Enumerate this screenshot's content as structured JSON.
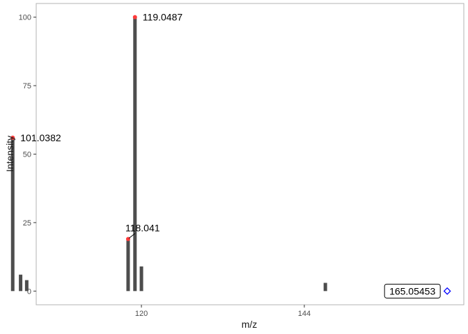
{
  "chart_data": {
    "type": "bar",
    "xlabel": "m/z",
    "ylabel": "Intensity",
    "xlim": [
      104.5,
      167.5
    ],
    "ylim": [
      -5,
      105
    ],
    "xticks": [
      120,
      144
    ],
    "yticks": [
      0,
      25,
      50,
      75,
      100
    ],
    "grid": false,
    "colors": {
      "bar": "#4d4d4d",
      "highlight": "#ff3b3b",
      "precursor": "#0000ff",
      "border": "#b3b3b3"
    },
    "series": [
      {
        "peaks": [
          {
            "mz": 101.0382,
            "intensity": 56
          },
          {
            "mz": 102.2,
            "intensity": 6
          },
          {
            "mz": 103.1,
            "intensity": 4
          },
          {
            "mz": 118.041,
            "intensity": 19
          },
          {
            "mz": 119.0487,
            "intensity": 100
          },
          {
            "mz": 120.0,
            "intensity": 9
          },
          {
            "mz": 147.1,
            "intensity": 3
          }
        ]
      }
    ],
    "annotations": [
      {
        "mz": 101.0382,
        "intensity": 56,
        "text": "101.0382",
        "highlight": true
      },
      {
        "mz": 118.041,
        "intensity": 19,
        "text": "118.041",
        "highlight": true
      },
      {
        "mz": 119.0487,
        "intensity": 100,
        "text": "119.0487",
        "highlight": true
      }
    ],
    "precursor": {
      "mz": 165.05453,
      "intensity": 0,
      "text": "165.05453"
    }
  }
}
